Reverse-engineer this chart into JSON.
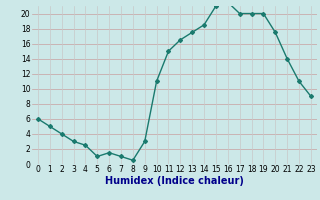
{
  "x": [
    0,
    1,
    2,
    3,
    4,
    5,
    6,
    7,
    8,
    9,
    10,
    11,
    12,
    13,
    14,
    15,
    16,
    17,
    18,
    19,
    20,
    21,
    22,
    23
  ],
  "y": [
    6,
    5,
    4,
    3,
    2.5,
    1,
    1.5,
    1,
    0.5,
    3,
    11,
    15,
    16.5,
    17.5,
    18.5,
    21,
    21.5,
    20,
    20,
    20,
    17.5,
    14,
    11,
    9
  ],
  "line_color": "#1a7a6e",
  "marker": "D",
  "marker_size": 2.0,
  "bg_color": "#cce8e8",
  "grid_color_h": "#c8a0a0",
  "grid_color_v": "#c8c8c8",
  "xlabel": "Humidex (Indice chaleur)",
  "xlim": [
    -0.5,
    23.5
  ],
  "ylim": [
    0,
    21
  ],
  "yticks": [
    0,
    2,
    4,
    6,
    8,
    10,
    12,
    14,
    16,
    18,
    20
  ],
  "xticks": [
    0,
    1,
    2,
    3,
    4,
    5,
    6,
    7,
    8,
    9,
    10,
    11,
    12,
    13,
    14,
    15,
    16,
    17,
    18,
    19,
    20,
    21,
    22,
    23
  ],
  "tick_label_size": 5.5,
  "xlabel_size": 7.0,
  "xlabel_color": "#00008b",
  "linewidth": 1.0
}
